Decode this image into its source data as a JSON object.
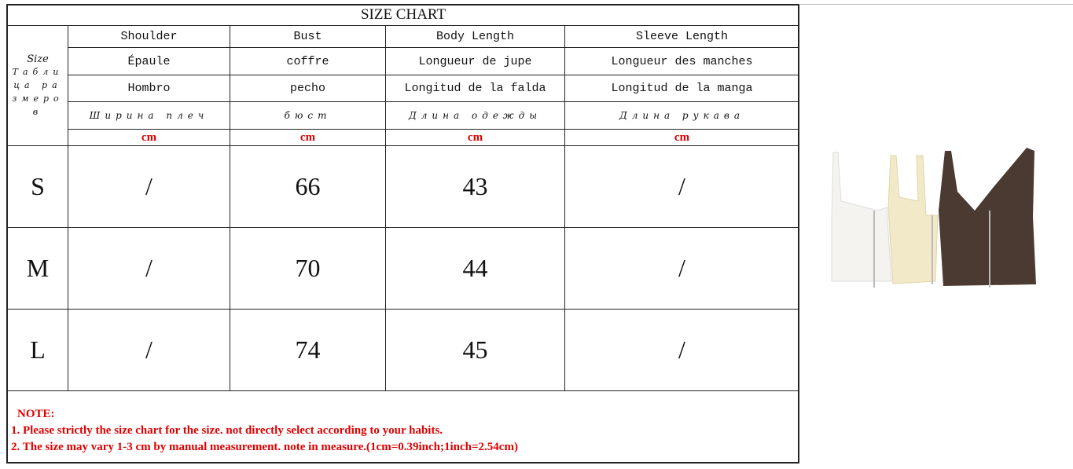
{
  "title": "SIZE CHART",
  "size_label": {
    "en": "Size",
    "ru": "Таблица размеров"
  },
  "columns": [
    {
      "en": "Shoulder",
      "fr": "Épaule",
      "es": "Hombro",
      "ru": "Ширина плеч",
      "unit": "cm"
    },
    {
      "en": "Bust",
      "fr": "coffre",
      "es": "pecho",
      "ru": "бюст",
      "unit": "cm"
    },
    {
      "en": "Body Length",
      "fr": "Longueur de jupe",
      "es": "Longitud de la falda",
      "ru": "Длина одежды",
      "unit": "cm"
    },
    {
      "en": "Sleeve Length",
      "fr": "Longueur des manches",
      "es": "Longitud de la manga",
      "ru": "Длина рукава",
      "unit": "cm"
    }
  ],
  "rows": [
    {
      "size": "S",
      "values": [
        "/",
        "66",
        "43",
        "/"
      ]
    },
    {
      "size": "M",
      "values": [
        "/",
        "70",
        "44",
        "/"
      ]
    },
    {
      "size": "L",
      "values": [
        "/",
        "74",
        "45",
        "/"
      ]
    }
  ],
  "note": {
    "heading": "NOTE:",
    "lines": [
      "1. Please strictly the size chart for the size. not directly select according to your habits.",
      "2. The size may vary 1-3 cm by manual measurement. note in measure.(1cm=0.39inch;1inch=2.54cm)"
    ]
  },
  "colors": {
    "note": "#e00000",
    "product": [
      "#f4f3ef",
      "#f1e9c8",
      "#4a3a32"
    ]
  }
}
